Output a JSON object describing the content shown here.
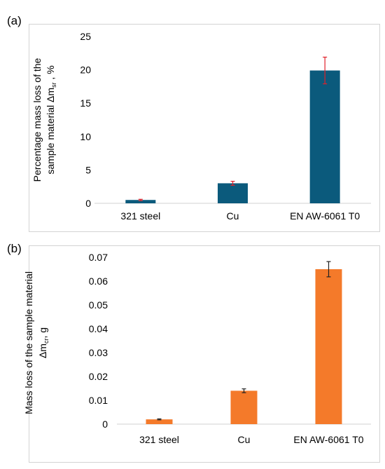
{
  "panels": [
    {
      "label": "(a)"
    },
    {
      "label": "(b)"
    }
  ],
  "chart_data": [
    {
      "type": "bar",
      "categories": [
        "321 steel",
        "Cu",
        "EN AW-6061 T0"
      ],
      "values": [
        0.5,
        3.0,
        19.9
      ],
      "errors": [
        0.1,
        0.3,
        2.0
      ],
      "ylabel_line1": "Percentage mass loss of the",
      "ylabel_line2_main": "sample material Δm",
      "ylabel_line2_sub": "sr",
      "ylabel_line2_tail": " , %",
      "ylim": [
        0,
        25
      ],
      "yticks": [
        "0",
        "5",
        "10",
        "15",
        "20",
        "25"
      ],
      "grid": false,
      "bar_color": "#0b5a7c",
      "error_color": "#e0202a"
    },
    {
      "type": "bar",
      "categories": [
        "321 steel",
        "Cu",
        "EN AW-6061 T0"
      ],
      "values": [
        0.002,
        0.014,
        0.065
      ],
      "errors": [
        0.0002,
        0.0008,
        0.0032
      ],
      "ylabel_line1": "Mass loss of the sample material",
      "ylabel_line2_main": "Δm",
      "ylabel_line2_sub": "cr",
      "ylabel_line2_tail": ", g",
      "ylim": [
        0,
        0.07
      ],
      "yticks": [
        "0",
        "0.01",
        "0.02",
        "0.03",
        "0.04",
        "0.05",
        "0.06",
        "0.07"
      ],
      "grid": false,
      "bar_color": "#f47a2a",
      "error_color": "#222222"
    }
  ]
}
